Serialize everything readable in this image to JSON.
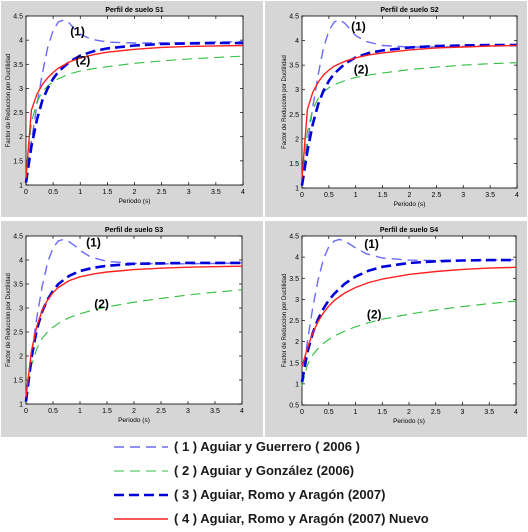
{
  "colors": {
    "s1": "#6a6aff",
    "s2": "#2fbf3f",
    "s3": "#0000dd",
    "s4": "#ff2020"
  },
  "legend": [
    {
      "key": "s1",
      "label": "( 1 ) Aguiar y Guerrero ( 2006 )",
      "dash": "10,6",
      "width": 1.4
    },
    {
      "key": "s2",
      "label": "( 2 ) Aguiar y González (2006)",
      "dash": "10,6",
      "width": 1.1
    },
    {
      "key": "s3",
      "label": "( 3 ) Aguiar, Romo y Aragón (2007)",
      "dash": "10,5",
      "width": 2.6
    },
    {
      "key": "s4",
      "label": "( 4 ) Aguiar, Romo y Aragón (2007) Nuevo",
      "dash": "",
      "width": 1.4
    }
  ],
  "chart_data": [
    {
      "type": "line",
      "title": "Perfil de suelo S1",
      "xlabel": "Periodo (s)",
      "ylabel": "Factor de Reduccion por Ductilidad",
      "xlim": [
        0,
        4
      ],
      "ylim": [
        1,
        4.5
      ],
      "xticks": [
        "0",
        "0.5",
        "1",
        "1.5",
        "2",
        "2.5",
        "3",
        "3.5",
        "4"
      ],
      "yticks": [
        "1",
        "1.5",
        "2",
        "2.5",
        "3",
        "3.5",
        "4",
        "4.5"
      ],
      "annotations": [
        {
          "text": "(1)",
          "x": 0.95,
          "y": 4.1
        },
        {
          "text": "(2)",
          "x": 1.05,
          "y": 3.5
        }
      ],
      "series": [
        {
          "key": "s1",
          "x": [
            0,
            0.1,
            0.2,
            0.3,
            0.4,
            0.5,
            0.6,
            0.7,
            0.8,
            0.9,
            1.0,
            1.2,
            1.5,
            2.0,
            2.5,
            3.0,
            3.5,
            4.0
          ],
          "y": [
            1.05,
            1.9,
            2.65,
            3.3,
            3.85,
            4.2,
            4.38,
            4.42,
            4.35,
            4.22,
            4.12,
            4.02,
            3.96,
            3.94,
            3.94,
            3.95,
            3.96,
            3.97
          ]
        },
        {
          "key": "s2",
          "x": [
            0,
            0.1,
            0.2,
            0.3,
            0.4,
            0.5,
            0.6,
            0.8,
            1.0,
            1.25,
            1.5,
            2.0,
            2.5,
            3.0,
            3.5,
            4.0
          ],
          "y": [
            1.05,
            2.3,
            2.72,
            2.93,
            3.05,
            3.14,
            3.2,
            3.3,
            3.36,
            3.41,
            3.45,
            3.52,
            3.57,
            3.61,
            3.64,
            3.67
          ]
        },
        {
          "key": "s3",
          "x": [
            0,
            0.1,
            0.2,
            0.3,
            0.4,
            0.5,
            0.6,
            0.8,
            1.0,
            1.25,
            1.5,
            2.0,
            2.5,
            3.0,
            3.5,
            4.0
          ],
          "y": [
            1.05,
            1.8,
            2.35,
            2.75,
            3.0,
            3.2,
            3.35,
            3.55,
            3.68,
            3.77,
            3.83,
            3.89,
            3.92,
            3.93,
            3.94,
            3.94
          ]
        },
        {
          "key": "s4",
          "x": [
            0,
            0.1,
            0.2,
            0.3,
            0.4,
            0.5,
            0.6,
            0.8,
            1.0,
            1.25,
            1.5,
            2.0,
            2.5,
            3.0,
            3.5,
            4.0
          ],
          "y": [
            1.15,
            2.55,
            2.88,
            3.08,
            3.22,
            3.33,
            3.42,
            3.55,
            3.63,
            3.7,
            3.75,
            3.81,
            3.85,
            3.87,
            3.88,
            3.89
          ]
        }
      ]
    },
    {
      "type": "line",
      "title": "Perfil de suelo S2",
      "xlabel": "Periodo (s)",
      "ylabel": "Factor de Reduccion por Ductilidad",
      "xlim": [
        0,
        4
      ],
      "ylim": [
        1,
        4.5
      ],
      "xticks": [
        "0",
        "0.5",
        "1",
        "1.5",
        "2",
        "2.5",
        "3",
        "3.5",
        "4"
      ],
      "yticks": [
        "1",
        "1.5",
        "2",
        "2.5",
        "3",
        "3.5",
        "4",
        "4.5"
      ],
      "annotations": [
        {
          "text": "(1)",
          "x": 1.05,
          "y": 4.2
        },
        {
          "text": "(2)",
          "x": 1.1,
          "y": 3.33
        }
      ],
      "series": [
        {
          "key": "s1",
          "x": [
            0,
            0.1,
            0.2,
            0.3,
            0.4,
            0.5,
            0.6,
            0.7,
            0.8,
            0.9,
            1.0,
            1.2,
            1.5,
            2.0,
            2.5,
            3.0,
            3.5,
            4.0
          ],
          "y": [
            1.05,
            1.9,
            2.65,
            3.3,
            3.85,
            4.2,
            4.38,
            4.42,
            4.35,
            4.22,
            4.1,
            3.98,
            3.9,
            3.87,
            3.87,
            3.88,
            3.89,
            3.9
          ]
        },
        {
          "key": "s2",
          "x": [
            0,
            0.1,
            0.2,
            0.3,
            0.4,
            0.5,
            0.6,
            0.8,
            1.0,
            1.25,
            1.5,
            2.0,
            2.5,
            3.0,
            3.5,
            4.0
          ],
          "y": [
            1.05,
            2.15,
            2.6,
            2.82,
            2.95,
            3.04,
            3.1,
            3.19,
            3.25,
            3.3,
            3.34,
            3.41,
            3.46,
            3.5,
            3.53,
            3.55
          ]
        },
        {
          "key": "s3",
          "x": [
            0,
            0.1,
            0.2,
            0.3,
            0.4,
            0.5,
            0.6,
            0.8,
            1.0,
            1.25,
            1.5,
            2.0,
            2.5,
            3.0,
            3.5,
            4.0
          ],
          "y": [
            1.05,
            1.75,
            2.3,
            2.7,
            2.98,
            3.18,
            3.33,
            3.53,
            3.66,
            3.75,
            3.8,
            3.86,
            3.89,
            3.9,
            3.91,
            3.91
          ]
        },
        {
          "key": "s4",
          "x": [
            0,
            0.1,
            0.2,
            0.3,
            0.4,
            0.5,
            0.6,
            0.8,
            1.0,
            1.25,
            1.5,
            2.0,
            2.5,
            3.0,
            3.5,
            4.0
          ],
          "y": [
            1.2,
            2.6,
            2.95,
            3.15,
            3.3,
            3.4,
            3.48,
            3.58,
            3.65,
            3.71,
            3.75,
            3.81,
            3.85,
            3.87,
            3.89,
            3.9
          ]
        }
      ]
    },
    {
      "type": "line",
      "title": "Perfil de suelo S3",
      "xlabel": "Periodo (s)",
      "ylabel": "Factor de Reduccion por Ductilidad",
      "xlim": [
        0,
        4
      ],
      "ylim": [
        1,
        4.5
      ],
      "xticks": [
        "0",
        "0.5",
        "1",
        "1.5",
        "2",
        "2.5",
        "3",
        "3.5",
        "4"
      ],
      "yticks": [
        "1",
        "1.5",
        "2",
        "2.5",
        "3",
        "3.5",
        "4",
        "4.5"
      ],
      "annotations": [
        {
          "text": "(1)",
          "x": 1.25,
          "y": 4.28
        },
        {
          "text": "(2)",
          "x": 1.4,
          "y": 3.0
        }
      ],
      "series": [
        {
          "key": "s1",
          "x": [
            0,
            0.1,
            0.2,
            0.3,
            0.4,
            0.5,
            0.6,
            0.7,
            0.8,
            0.9,
            1.0,
            1.2,
            1.5,
            2.0,
            2.5,
            3.0,
            3.5,
            4.0
          ],
          "y": [
            1.05,
            2.0,
            2.8,
            3.45,
            3.95,
            4.25,
            4.4,
            4.43,
            4.38,
            4.3,
            4.2,
            4.06,
            3.97,
            3.93,
            3.92,
            3.92,
            3.93,
            3.94
          ]
        },
        {
          "key": "s2",
          "x": [
            0,
            0.1,
            0.2,
            0.3,
            0.4,
            0.5,
            0.6,
            0.8,
            1.0,
            1.25,
            1.5,
            2.0,
            2.5,
            3.0,
            3.5,
            4.0
          ],
          "y": [
            1.05,
            1.8,
            2.15,
            2.37,
            2.5,
            2.6,
            2.68,
            2.8,
            2.88,
            2.96,
            3.02,
            3.12,
            3.2,
            3.27,
            3.33,
            3.38
          ]
        },
        {
          "key": "s3",
          "x": [
            0,
            0.1,
            0.2,
            0.3,
            0.4,
            0.5,
            0.6,
            0.8,
            1.0,
            1.25,
            1.5,
            2.0,
            2.5,
            3.0,
            3.5,
            4.0
          ],
          "y": [
            1.05,
            1.95,
            2.55,
            2.93,
            3.18,
            3.36,
            3.5,
            3.67,
            3.77,
            3.84,
            3.88,
            3.92,
            3.93,
            3.94,
            3.94,
            3.94
          ]
        },
        {
          "key": "s4",
          "x": [
            0,
            0.1,
            0.2,
            0.3,
            0.4,
            0.5,
            0.6,
            0.8,
            1.0,
            1.25,
            1.5,
            2.0,
            2.5,
            3.0,
            3.5,
            4.0
          ],
          "y": [
            1.15,
            2.1,
            2.62,
            2.95,
            3.17,
            3.32,
            3.43,
            3.57,
            3.65,
            3.71,
            3.75,
            3.8,
            3.83,
            3.85,
            3.86,
            3.87
          ]
        }
      ]
    },
    {
      "type": "line",
      "title": "Perfil de suelo S4",
      "xlabel": "Periodo (s)",
      "ylabel": "Factor de Reduccion por Ductilidad",
      "xlim": [
        0,
        4
      ],
      "ylim": [
        0.5,
        4.5
      ],
      "xticks": [
        "0",
        "0.5",
        "1",
        "1.5",
        "2",
        "2.5",
        "3",
        "3.5",
        "4"
      ],
      "yticks": [
        "0.5",
        "1",
        "1.5",
        "2",
        "2.5",
        "3",
        "3.5",
        "4",
        "4.5"
      ],
      "annotations": [
        {
          "text": "(1)",
          "x": 1.3,
          "y": 4.22
        },
        {
          "text": "(2)",
          "x": 1.35,
          "y": 2.55
        }
      ],
      "series": [
        {
          "key": "s1",
          "x": [
            0,
            0.1,
            0.2,
            0.3,
            0.4,
            0.5,
            0.6,
            0.7,
            0.8,
            0.9,
            1.0,
            1.2,
            1.5,
            2.0,
            2.5,
            3.0,
            3.5,
            4.0
          ],
          "y": [
            1.05,
            2.0,
            2.8,
            3.45,
            3.95,
            4.25,
            4.38,
            4.42,
            4.38,
            4.3,
            4.22,
            4.08,
            3.98,
            3.93,
            3.92,
            3.92,
            3.93,
            3.94
          ]
        },
        {
          "key": "s2",
          "x": [
            0,
            0.1,
            0.2,
            0.3,
            0.4,
            0.5,
            0.6,
            0.8,
            1.0,
            1.25,
            1.5,
            2.0,
            2.5,
            3.0,
            3.5,
            4.0
          ],
          "y": [
            0.95,
            1.45,
            1.68,
            1.84,
            1.96,
            2.05,
            2.13,
            2.25,
            2.35,
            2.45,
            2.53,
            2.65,
            2.75,
            2.83,
            2.9,
            2.96
          ]
        },
        {
          "key": "s3",
          "x": [
            0,
            0.1,
            0.2,
            0.3,
            0.4,
            0.5,
            0.6,
            0.8,
            1.0,
            1.25,
            1.5,
            2.0,
            2.5,
            3.0,
            3.5,
            4.0
          ],
          "y": [
            1.05,
            1.75,
            2.2,
            2.53,
            2.78,
            2.98,
            3.13,
            3.37,
            3.54,
            3.68,
            3.77,
            3.86,
            3.9,
            3.92,
            3.93,
            3.93
          ]
        },
        {
          "key": "s4",
          "x": [
            0,
            0.1,
            0.2,
            0.3,
            0.4,
            0.5,
            0.6,
            0.8,
            1.0,
            1.25,
            1.5,
            2.0,
            2.5,
            3.0,
            3.5,
            4.0
          ],
          "y": [
            1.4,
            1.85,
            2.2,
            2.47,
            2.68,
            2.84,
            2.97,
            3.15,
            3.28,
            3.4,
            3.48,
            3.59,
            3.66,
            3.71,
            3.74,
            3.76
          ]
        }
      ]
    }
  ]
}
